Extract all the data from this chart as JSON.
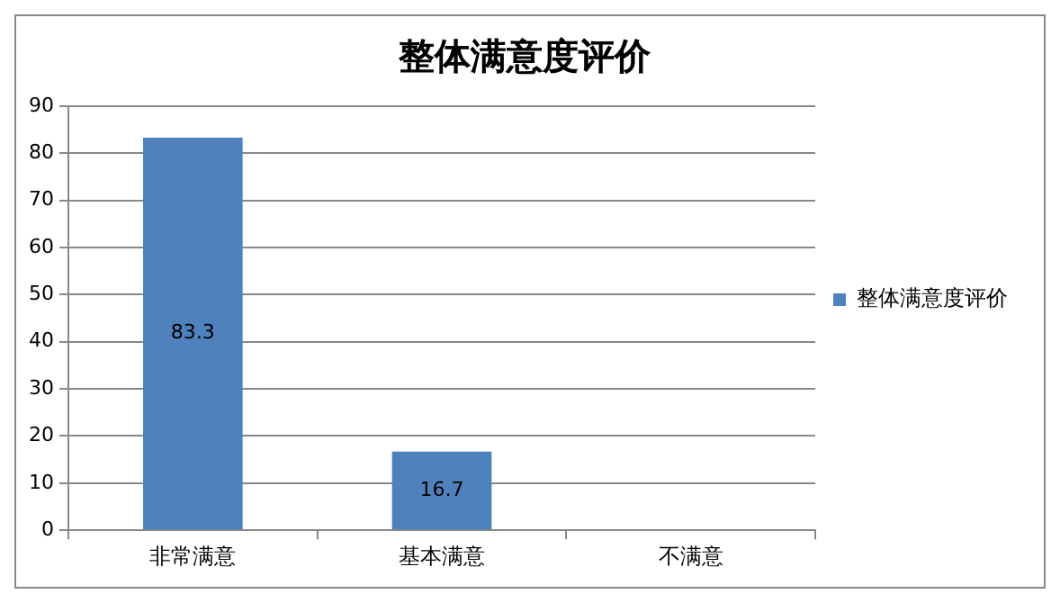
{
  "chart_data": {
    "type": "bar",
    "title": "整体满意度评价",
    "categories": [
      "非常满意",
      "基本满意",
      "不满意"
    ],
    "series": [
      {
        "name": "整体满意度评价",
        "color": "#4f81bd",
        "values": [
          83.3,
          16.7,
          0
        ],
        "value_labels": [
          "83.3",
          "16.7",
          null
        ]
      }
    ],
    "ylim": [
      0,
      90
    ],
    "yticks": [
      0,
      10,
      20,
      30,
      40,
      50,
      60,
      70,
      80,
      90
    ],
    "grid": "y",
    "legend": "right"
  }
}
